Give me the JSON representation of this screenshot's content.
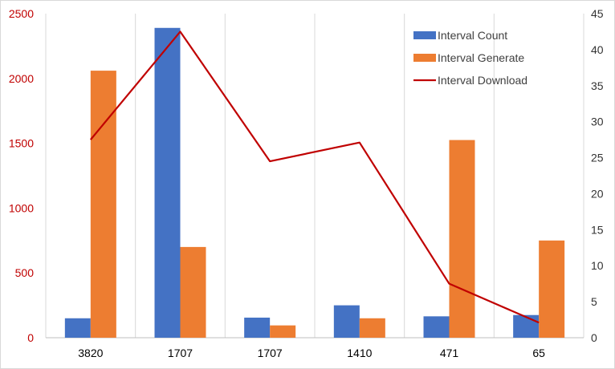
{
  "chart_data": {
    "type": "bar",
    "categories": [
      "3820",
      "1707",
      "1707",
      "1410",
      "471",
      "65"
    ],
    "series": [
      {
        "name": "Interval Count",
        "type": "bar",
        "axis": "left",
        "color": "#4472c4",
        "values": [
          150,
          2390,
          155,
          250,
          165,
          175
        ]
      },
      {
        "name": "Interval Generate",
        "type": "bar",
        "axis": "left",
        "color": "#ed7d31",
        "values": [
          2060,
          700,
          95,
          150,
          1525,
          750
        ]
      },
      {
        "name": "Interval Download",
        "type": "line",
        "axis": "right",
        "color": "#c00000",
        "values": [
          27.5,
          42.5,
          24.5,
          27.1,
          7.5,
          2.1
        ]
      }
    ],
    "y_left": {
      "min": 0,
      "max": 2500,
      "ticks": [
        "0",
        "500",
        "1000",
        "1500",
        "2000",
        "2500"
      ],
      "color": "#c00000"
    },
    "y_right": {
      "min": 0,
      "max": 45,
      "ticks": [
        "0",
        "5",
        "10",
        "15",
        "20",
        "25",
        "30",
        "35",
        "40",
        "45"
      ]
    },
    "grid": "vertical-category-lines",
    "legend_position": "top-right"
  }
}
